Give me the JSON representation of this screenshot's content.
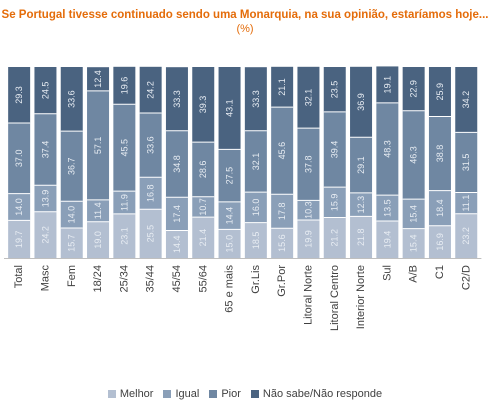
{
  "chart_data": {
    "type": "bar",
    "stacked": true,
    "title": "Se Portugal tivesse continuado sendo uma Monarquia, na sua opinião, estaríamos hoje...",
    "subtitle": "(%)",
    "categories": [
      "Total",
      "Masc",
      "Fem",
      "18/24",
      "25/34",
      "35/44",
      "45/54",
      "55/64",
      "65 e mais",
      "Gr.Lis",
      "Gr.Por",
      "Litoral Norte",
      "Litoral Centro",
      "Interior Norte",
      "Sul",
      "A/B",
      "C1",
      "C2/D"
    ],
    "series": [
      {
        "name": "Melhor",
        "color": "#b3bfd1",
        "values": [
          19.7,
          24.2,
          15.7,
          19.0,
          23.1,
          25.5,
          14.4,
          21.4,
          15.0,
          18.5,
          15.6,
          19.9,
          21.2,
          21.8,
          19.4,
          15.4,
          16.9,
          23.2
        ]
      },
      {
        "name": "Igual",
        "color": "#8a9fb8",
        "values": [
          14.0,
          13.9,
          14.0,
          11.4,
          11.9,
          16.8,
          17.4,
          10.7,
          14.4,
          16.0,
          17.8,
          10.3,
          15.9,
          12.3,
          13.5,
          15.4,
          18.4,
          11.1
        ]
      },
      {
        "name": "Pior",
        "color": "#6f87a2",
        "values": [
          37.0,
          37.4,
          36.7,
          57.1,
          45.5,
          33.6,
          34.8,
          28.6,
          27.5,
          32.1,
          45.6,
          37.8,
          39.4,
          29.1,
          48.3,
          46.3,
          38.8,
          31.5
        ]
      },
      {
        "name": "Não sabe/Não responde",
        "color": "#4a6380",
        "values": [
          29.3,
          24.5,
          33.6,
          12.4,
          19.6,
          24.2,
          33.3,
          39.3,
          43.1,
          33.3,
          21.1,
          32.1,
          23.5,
          36.9,
          19.1,
          22.9,
          25.9,
          34.2
        ]
      }
    ],
    "label_color": "#e8edf3",
    "axis_color": "#bfbfbf",
    "ylim": [
      0,
      100
    ],
    "grid": false,
    "legend_position": "bottom"
  }
}
